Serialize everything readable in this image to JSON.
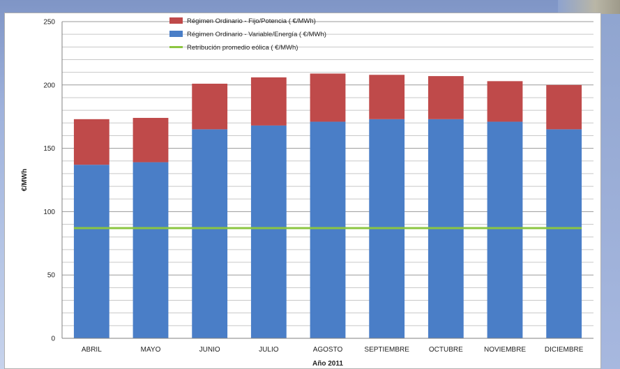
{
  "chart_data": {
    "type": "bar",
    "stacked": true,
    "categories": [
      "ABRIL",
      "MAYO",
      "JUNIO",
      "JULIO",
      "AGOSTO",
      "SEPTIEMBRE",
      "OCTUBRE",
      "NOVIEMBRE",
      "DICIEMBRE"
    ],
    "series": [
      {
        "name": "Régimen Ordinario - Variable/Energía ( €/MWh)",
        "color": "#4a7ec7",
        "values": [
          137,
          139,
          165,
          168,
          171,
          173,
          173,
          171,
          165
        ]
      },
      {
        "name": "Régimen Ordinario - Fijo/Potencia ( €/MWh)",
        "color": "#bf4a4a",
        "values": [
          36,
          35,
          36,
          38,
          38,
          35,
          34,
          32,
          35
        ]
      }
    ],
    "line_series": [
      {
        "name": "Retribución promedio eólica ( €/MWh)",
        "color": "#8cc641",
        "value": 87
      }
    ],
    "legend": [
      {
        "name": "Régimen Ordinario - Fijo/Potencia ( €/MWh)",
        "color": "#bf4a4a",
        "kind": "box"
      },
      {
        "name": "Régimen Ordinario - Variable/Energía ( €/MWh)",
        "color": "#4a7ec7",
        "kind": "box"
      },
      {
        "name": "Retribución promedio eólica ( €/MWh)",
        "color": "#8cc641",
        "kind": "line"
      }
    ],
    "legend_position": "top-center",
    "xlabel": "Año 2011",
    "ylabel": "€/MWh",
    "ylim": [
      0,
      250
    ],
    "yticks": [
      0,
      50,
      100,
      150,
      200,
      250
    ],
    "minor_grid_step": 10,
    "grid": true
  }
}
